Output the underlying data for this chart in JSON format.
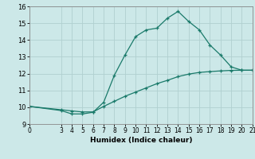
{
  "title": "",
  "xlabel": "Humidex (Indice chaleur)",
  "bg_color": "#cce8e8",
  "grid_color": "#b0d0d0",
  "line_color": "#1a7a6a",
  "line1_x": [
    0,
    3,
    4,
    5,
    6,
    7,
    8,
    9,
    10,
    11,
    12,
    13,
    14,
    15,
    16,
    17,
    18,
    19,
    20,
    21
  ],
  "line1_y": [
    10.05,
    9.8,
    9.6,
    9.6,
    9.7,
    10.3,
    11.9,
    13.1,
    14.2,
    14.6,
    14.7,
    15.3,
    15.7,
    15.1,
    14.6,
    13.7,
    13.1,
    12.4,
    12.2,
    12.2
  ],
  "line2_x": [
    0,
    3,
    4,
    5,
    6,
    7,
    8,
    9,
    10,
    11,
    12,
    13,
    14,
    15,
    16,
    17,
    18,
    19,
    20,
    21
  ],
  "line2_y": [
    10.05,
    9.85,
    9.78,
    9.72,
    9.72,
    10.05,
    10.35,
    10.65,
    10.9,
    11.15,
    11.4,
    11.6,
    11.82,
    11.97,
    12.07,
    12.12,
    12.16,
    12.19,
    12.2,
    12.2
  ],
  "xlim": [
    0,
    21
  ],
  "ylim": [
    9,
    16
  ],
  "xticks": [
    0,
    3,
    4,
    5,
    6,
    7,
    8,
    9,
    10,
    11,
    12,
    13,
    14,
    15,
    16,
    17,
    18,
    19,
    20,
    21
  ],
  "yticks": [
    9,
    10,
    11,
    12,
    13,
    14,
    15,
    16
  ]
}
